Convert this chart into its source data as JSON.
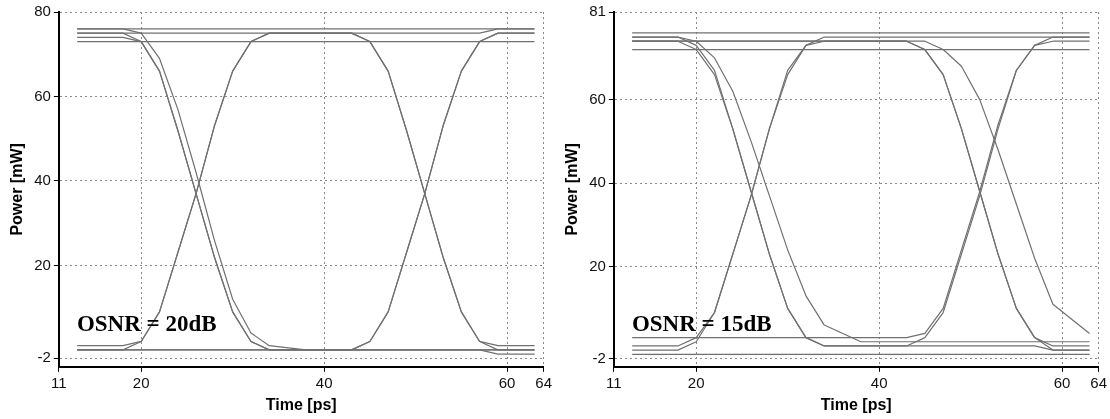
{
  "chart_data": [
    {
      "type": "line",
      "xlabel": "Time [ps]",
      "ylabel": "Power [mW]",
      "annotations": [
        "OSNR = 20dB"
      ],
      "xlim": [
        11,
        64
      ],
      "ylim": [
        -4,
        80
      ],
      "xticks": [
        11,
        20,
        40,
        60,
        64
      ],
      "yticks": [
        -2,
        20,
        40,
        60,
        80
      ],
      "grid": true,
      "marker": "none",
      "line_style": "solid",
      "x": [
        13,
        18,
        20,
        22,
        24,
        26,
        28,
        30,
        32,
        34,
        38,
        43,
        45,
        47,
        49,
        51,
        53,
        55,
        57,
        59,
        63
      ],
      "series": [
        {
          "color": "#707070",
          "values": [
            76,
            76,
            76,
            76,
            76,
            76,
            76,
            76,
            76,
            76,
            76,
            76,
            76,
            76,
            76,
            76,
            76,
            76,
            76,
            76,
            76
          ]
        },
        {
          "color": "#707070",
          "values": [
            75,
            75,
            75,
            75,
            75,
            75,
            75,
            75,
            75,
            75,
            75,
            75,
            73,
            66,
            52,
            37,
            22,
            9,
            2,
            0,
            0
          ]
        },
        {
          "color": "#707070",
          "values": [
            75,
            75,
            73,
            66,
            52,
            37,
            22,
            9,
            2,
            0,
            0,
            0,
            2,
            9,
            23,
            37,
            53,
            66,
            73,
            75,
            75
          ]
        },
        {
          "color": "#707070",
          "values": [
            74,
            74,
            73,
            66,
            52,
            37,
            22,
            9,
            2,
            0,
            0,
            0,
            0,
            0,
            0,
            0,
            0,
            0,
            0,
            -1,
            -1
          ]
        },
        {
          "color": "#707070",
          "values": [
            0,
            0,
            2,
            9,
            23,
            37,
            53,
            66,
            73,
            75,
            75,
            75,
            75,
            75,
            75,
            75,
            75,
            75,
            75,
            76,
            76
          ]
        },
        {
          "color": "#707070",
          "values": [
            1,
            1,
            2,
            9,
            23,
            37,
            53,
            66,
            73,
            75,
            75,
            75,
            73,
            66,
            52,
            37,
            22,
            9,
            2,
            1,
            1
          ]
        },
        {
          "color": "#707070",
          "values": [
            0,
            0,
            0,
            0,
            0,
            0,
            0,
            0,
            0,
            0,
            0,
            0,
            2,
            9,
            23,
            37,
            53,
            66,
            73,
            75,
            75
          ]
        },
        {
          "color": "#707070",
          "values": [
            0,
            0,
            0,
            0,
            0,
            0,
            0,
            0,
            0,
            0,
            0,
            0,
            0,
            0,
            0,
            0,
            0,
            0,
            0,
            0,
            0
          ]
        },
        {
          "color": "#707070",
          "values": [
            73,
            73,
            73,
            73,
            73,
            73,
            73,
            73,
            73,
            73,
            73,
            73,
            73,
            73,
            73,
            73,
            73,
            73,
            73,
            73,
            73
          ]
        },
        {
          "color": "#707070",
          "values": [
            76,
            76,
            75,
            69,
            57,
            42,
            26,
            12,
            4,
            1,
            0,
            0,
            0,
            0,
            0,
            0,
            0,
            0,
            0,
            0,
            0
          ]
        }
      ]
    },
    {
      "type": "line",
      "xlabel": "Time [ps]",
      "ylabel": "Power [mW]",
      "annotations": [
        "OSNR = 15dB"
      ],
      "xlim": [
        11,
        64
      ],
      "ylim": [
        -4,
        81
      ],
      "xticks": [
        11,
        20,
        40,
        60,
        64
      ],
      "yticks": [
        -2,
        20,
        40,
        60,
        81
      ],
      "grid": true,
      "marker": "none",
      "line_style": "solid",
      "x": [
        13,
        18,
        20,
        22,
        24,
        26,
        28,
        30,
        32,
        34,
        38,
        43,
        45,
        47,
        49,
        51,
        53,
        55,
        57,
        59,
        63
      ],
      "series": [
        {
          "color": "#707070",
          "values": [
            76,
            76,
            76,
            76,
            76,
            76,
            76,
            76,
            76,
            76,
            76,
            76,
            76,
            76,
            76,
            76,
            76,
            76,
            76,
            76,
            76
          ]
        },
        {
          "color": "#707070",
          "values": [
            74,
            74,
            74,
            74,
            74,
            74,
            74,
            74,
            74,
            74,
            74,
            74,
            72,
            66,
            53,
            38,
            23,
            10,
            3,
            1,
            1
          ]
        },
        {
          "color": "#707070",
          "values": [
            75,
            75,
            73,
            67,
            53,
            38,
            23,
            10,
            3,
            1,
            1,
            1,
            3,
            9,
            23,
            37,
            53,
            67,
            73,
            75,
            75
          ]
        },
        {
          "color": "#707070",
          "values": [
            74,
            74,
            72,
            66,
            53,
            38,
            23,
            10,
            3,
            1,
            1,
            1,
            1,
            1,
            1,
            1,
            1,
            1,
            1,
            0,
            0
          ]
        },
        {
          "color": "#707070",
          "values": [
            1,
            1,
            3,
            9,
            23,
            37,
            53,
            67,
            73,
            75,
            75,
            75,
            75,
            75,
            75,
            75,
            75,
            75,
            75,
            75,
            75
          ]
        },
        {
          "color": "#707070",
          "values": [
            0,
            0,
            2,
            9,
            23,
            37,
            53,
            66,
            73,
            74,
            74,
            74,
            72,
            66,
            53,
            38,
            23,
            10,
            3,
            0,
            0
          ]
        },
        {
          "color": "#707070",
          "values": [
            3,
            3,
            3,
            3,
            3,
            3,
            3,
            3,
            3,
            3,
            3,
            3,
            4,
            10,
            24,
            38,
            54,
            67,
            73,
            74,
            74
          ]
        },
        {
          "color": "#707070",
          "values": [
            -1,
            -1,
            -1,
            -1,
            -1,
            -1,
            -1,
            -1,
            -1,
            -1,
            -1,
            -1,
            -1,
            -1,
            -1,
            -1,
            -1,
            -1,
            -1,
            -1,
            -1
          ]
        },
        {
          "color": "#707070",
          "values": [
            72,
            72,
            72,
            72,
            72,
            72,
            72,
            72,
            72,
            72,
            72,
            72,
            72,
            72,
            72,
            72,
            72,
            72,
            72,
            72,
            72
          ]
        },
        {
          "color": "#707070",
          "values": [
            75,
            75,
            74,
            70,
            62,
            50,
            37,
            24,
            13,
            6,
            2,
            2,
            2,
            2,
            2,
            2,
            2,
            2,
            2,
            2,
            2
          ]
        },
        {
          "color": "#707070",
          "values": [
            74,
            74,
            74,
            74,
            74,
            74,
            74,
            74,
            74,
            74,
            74,
            74,
            74,
            72,
            68,
            60,
            48,
            35,
            22,
            11,
            4
          ]
        }
      ]
    }
  ]
}
